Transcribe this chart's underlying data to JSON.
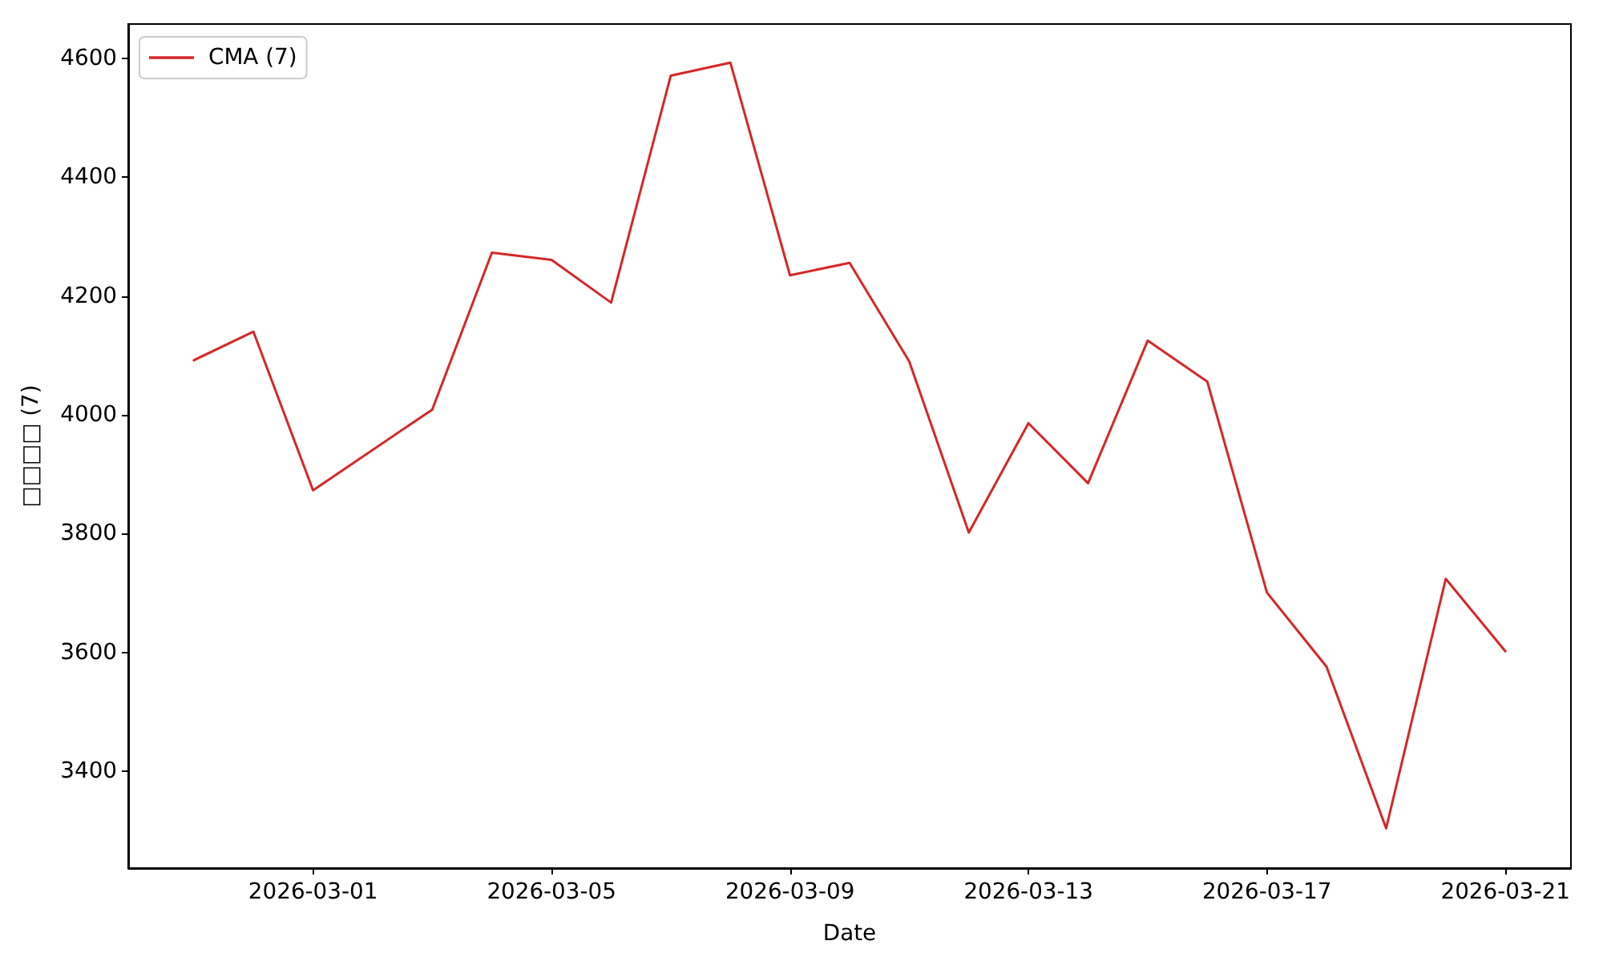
{
  "chart_data": {
    "type": "line",
    "xlabel": "Date",
    "ylabel": "□□□□ (7)",
    "x": [
      "2026-02-27",
      "2026-02-28",
      "2026-03-01",
      "2026-03-03",
      "2026-03-04",
      "2026-03-05",
      "2026-03-06",
      "2026-03-07",
      "2026-03-08",
      "2026-03-09",
      "2026-03-10",
      "2026-03-11",
      "2026-03-12",
      "2026-03-13",
      "2026-03-14",
      "2026-03-15",
      "2026-03-16",
      "2026-03-17",
      "2026-03-18",
      "2026-03-19",
      "2026-03-20",
      "2026-03-21"
    ],
    "series": [
      {
        "name": "CMA (7)",
        "color": "#d62728",
        "values": [
          4092,
          4140,
          3873,
          4009,
          4273,
          4261,
          4189,
          4571,
          4593,
          4235,
          4256,
          4090,
          3802,
          3986,
          3885,
          4125,
          4056,
          3701,
          3576,
          3304,
          3724,
          3602
        ]
      }
    ],
    "xlim": [
      "2026-02-25T21:36",
      "2026-03-22T02:24"
    ],
    "ylim": [
      3237,
      4658
    ],
    "xticks": [
      "2026-03-01",
      "2026-03-05",
      "2026-03-09",
      "2026-03-13",
      "2026-03-17",
      "2026-03-21"
    ],
    "yticks": [
      3400,
      3600,
      3800,
      4000,
      4200,
      4400,
      4600
    ],
    "legend": "top left"
  }
}
